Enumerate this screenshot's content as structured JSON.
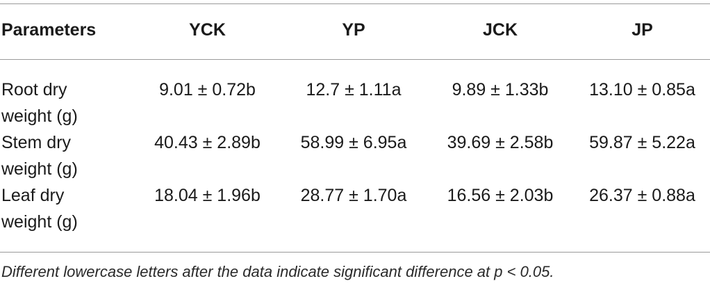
{
  "table": {
    "headers": [
      "Parameters",
      "YCK",
      "YP",
      "JCK",
      "JP"
    ],
    "rows": [
      {
        "parameter": "Root dry weight (g)",
        "values": [
          "9.01 ± 0.72b",
          "12.7 ± 1.11a",
          "9.89 ± 1.33b",
          "13.10 ± 0.85a"
        ]
      },
      {
        "parameter": "Stem dry weight (g)",
        "values": [
          "40.43 ± 2.89b",
          "58.99 ± 6.95a",
          "39.69 ± 2.58b",
          "59.87 ± 5.22a"
        ]
      },
      {
        "parameter": "Leaf dry weight (g)",
        "values": [
          "18.04 ± 1.96b",
          "28.77 ± 1.70a",
          "16.56 ± 2.03b",
          "26.37 ± 0.88a"
        ]
      }
    ]
  },
  "footnote": "Different lowercase letters after the data indicate significant difference at p < 0.05."
}
